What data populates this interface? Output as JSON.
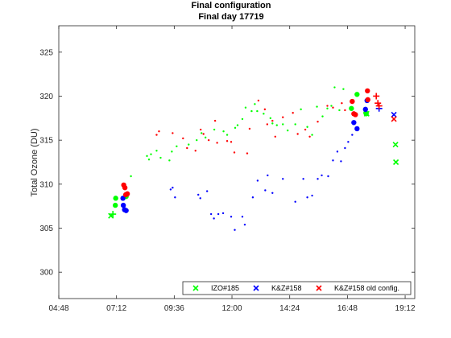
{
  "chart_data": {
    "type": "scatter",
    "title": "Final configuration",
    "subtitle": "Final day 17719",
    "xlabel": "",
    "ylabel": "Total Ozone (DU)",
    "xlim": [
      "04:48",
      "19:36"
    ],
    "ylim": [
      297,
      328
    ],
    "xticks": [
      "04:48",
      "07:12",
      "09:36",
      "12:00",
      "14:24",
      "16:48",
      "19:12"
    ],
    "yticks": [
      300,
      305,
      310,
      315,
      320,
      325
    ],
    "grid": false,
    "legend_position": "bottom-right",
    "colors": {
      "IZO#185": "#00ff00",
      "K&Z#158": "#0000ff",
      "K&Z#158 old config.": "#ff0000"
    },
    "series": [
      {
        "name": "IZO#185",
        "color": "#00ff00",
        "summary_x": [
          [
            "06:58",
            306.4
          ],
          [
            "17:36",
            318.0
          ],
          [
            "18:48",
            314.5
          ],
          [
            "18:49",
            312.5
          ]
        ],
        "summary_plus": [
          [
            "07:03",
            306.6
          ]
        ],
        "summary_large": [
          [
            "07:09",
            307.6
          ],
          [
            "07:10",
            308.4
          ],
          [
            "07:36",
            308.6
          ],
          [
            "16:58",
            318.6
          ],
          [
            "17:12",
            320.2
          ],
          [
            "17:34",
            318.1
          ],
          [
            "17:35",
            318.0
          ]
        ],
        "small": [
          [
            "07:48",
            310.9
          ],
          [
            "08:28",
            313.2
          ],
          [
            "08:33",
            312.8
          ],
          [
            "08:38",
            313.4
          ],
          [
            "08:52",
            313.8
          ],
          [
            "09:02",
            313.0
          ],
          [
            "09:24",
            312.7
          ],
          [
            "09:30",
            313.7
          ],
          [
            "09:42",
            314.3
          ],
          [
            "10:12",
            314.5
          ],
          [
            "10:32",
            315.0
          ],
          [
            "10:44",
            315.8
          ],
          [
            "10:54",
            315.3
          ],
          [
            "11:16",
            316.2
          ],
          [
            "11:39",
            316.0
          ],
          [
            "11:48",
            315.6
          ],
          [
            "12:08",
            316.4
          ],
          [
            "12:14",
            316.7
          ],
          [
            "12:26",
            317.4
          ],
          [
            "12:34",
            318.7
          ],
          [
            "12:49",
            318.3
          ],
          [
            "12:57",
            319.1
          ],
          [
            "13:03",
            318.3
          ],
          [
            "13:19",
            318.0
          ],
          [
            "13:36",
            317.5
          ],
          [
            "13:41",
            316.9
          ],
          [
            "13:52",
            316.7
          ],
          [
            "14:07",
            316.8
          ],
          [
            "14:19",
            316.1
          ],
          [
            "14:38",
            316.8
          ],
          [
            "14:52",
            318.5
          ],
          [
            "15:08",
            316.5
          ],
          [
            "15:20",
            315.6
          ],
          [
            "15:32",
            318.8
          ],
          [
            "15:46",
            317.7
          ],
          [
            "15:58",
            318.6
          ],
          [
            "16:08",
            318.9
          ],
          [
            "16:16",
            321.0
          ],
          [
            "16:28",
            318.4
          ],
          [
            "16:38",
            320.8
          ]
        ]
      },
      {
        "name": "K&Z#158",
        "color": "#0000ff",
        "summary_x": [
          [
            "18:44",
            317.9
          ]
        ],
        "summary_plus": [
          [
            "18:07",
            318.6
          ]
        ],
        "summary_large": [
          [
            "07:28",
            308.4
          ],
          [
            "07:29",
            307.6
          ],
          [
            "07:32",
            307.1
          ],
          [
            "07:36",
            307.0
          ],
          [
            "17:04",
            317.0
          ],
          [
            "17:12",
            316.3
          ],
          [
            "17:33",
            318.5
          ],
          [
            "17:37",
            319.5
          ]
        ],
        "small": [
          [
            "09:27",
            309.4
          ],
          [
            "09:32",
            309.6
          ],
          [
            "09:38",
            308.5
          ],
          [
            "10:36",
            308.8
          ],
          [
            "10:41",
            308.4
          ],
          [
            "10:58",
            309.2
          ],
          [
            "11:08",
            306.6
          ],
          [
            "11:15",
            306.1
          ],
          [
            "11:26",
            306.6
          ],
          [
            "11:38",
            306.7
          ],
          [
            "11:58",
            306.3
          ],
          [
            "12:07",
            304.8
          ],
          [
            "12:26",
            306.3
          ],
          [
            "12:32",
            305.4
          ],
          [
            "12:52",
            308.5
          ],
          [
            "13:04",
            310.4
          ],
          [
            "13:23",
            309.3
          ],
          [
            "13:29",
            311.0
          ],
          [
            "13:41",
            309.0
          ],
          [
            "14:07",
            310.6
          ],
          [
            "14:38",
            308.0
          ],
          [
            "14:58",
            310.6
          ],
          [
            "15:08",
            308.5
          ],
          [
            "15:20",
            308.7
          ],
          [
            "15:34",
            310.6
          ],
          [
            "15:44",
            311.0
          ],
          [
            "16:00",
            310.9
          ],
          [
            "16:12",
            312.7
          ],
          [
            "16:23",
            313.7
          ],
          [
            "16:32",
            312.6
          ],
          [
            "16:42",
            314.1
          ],
          [
            "16:50",
            314.8
          ],
          [
            "17:00",
            315.6
          ]
        ]
      },
      {
        "name": "K&Z#158 old config.",
        "color": "#ff0000",
        "summary_x": [
          [
            "18:44",
            317.4
          ]
        ],
        "summary_plus": [
          [
            "18:00",
            320.0
          ],
          [
            "18:04",
            319.2
          ],
          [
            "18:07",
            318.9
          ]
        ],
        "summary_large": [
          [
            "07:30",
            309.9
          ],
          [
            "07:33",
            309.6
          ],
          [
            "07:35",
            308.8
          ],
          [
            "07:39",
            308.9
          ],
          [
            "17:00",
            319.4
          ],
          [
            "17:04",
            318.0
          ],
          [
            "17:08",
            317.9
          ],
          [
            "17:38",
            320.6
          ],
          [
            "17:39",
            319.6
          ]
        ],
        "small": [
          [
            "08:52",
            315.6
          ],
          [
            "08:58",
            316.0
          ],
          [
            "09:32",
            315.8
          ],
          [
            "09:58",
            315.2
          ],
          [
            "10:08",
            314.1
          ],
          [
            "10:29",
            313.8
          ],
          [
            "10:42",
            316.2
          ],
          [
            "10:49",
            315.7
          ],
          [
            "11:02",
            315.0
          ],
          [
            "11:18",
            317.2
          ],
          [
            "11:23",
            314.7
          ],
          [
            "11:48",
            314.9
          ],
          [
            "11:58",
            314.8
          ],
          [
            "12:06",
            313.6
          ],
          [
            "12:38",
            313.5
          ],
          [
            "12:44",
            316.3
          ],
          [
            "13:06",
            319.5
          ],
          [
            "13:22",
            318.5
          ],
          [
            "13:28",
            316.8
          ],
          [
            "13:41",
            317.2
          ],
          [
            "13:48",
            315.4
          ],
          [
            "14:07",
            317.6
          ],
          [
            "14:32",
            318.1
          ],
          [
            "14:44",
            315.7
          ],
          [
            "15:03",
            316.2
          ],
          [
            "15:14",
            315.4
          ],
          [
            "15:34",
            317.1
          ],
          [
            "15:58",
            318.9
          ],
          [
            "16:12",
            318.7
          ],
          [
            "16:34",
            319.2
          ],
          [
            "16:42",
            318.4
          ]
        ]
      }
    ]
  }
}
